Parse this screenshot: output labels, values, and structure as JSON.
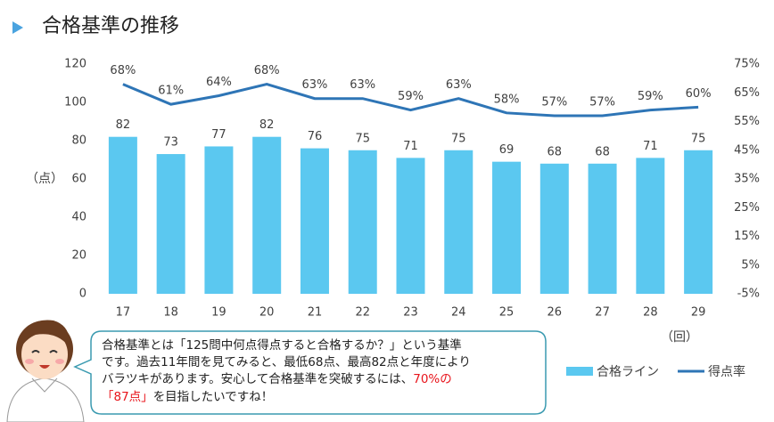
{
  "chart_data": {
    "type": "bar",
    "title": "合格基準の推移",
    "categories": [
      "17",
      "18",
      "19",
      "20",
      "21",
      "22",
      "23",
      "24",
      "25",
      "26",
      "27",
      "28",
      "29"
    ],
    "series": [
      {
        "name": "合格ライン",
        "type": "bar",
        "color": "#5bc8f0",
        "values": [
          82,
          73,
          77,
          82,
          76,
          75,
          71,
          75,
          69,
          68,
          68,
          71,
          75
        ]
      },
      {
        "name": "得点率",
        "type": "line",
        "axis": "y2",
        "color": "#2e75b6",
        "values": [
          68,
          61,
          64,
          68,
          63,
          63,
          59,
          63,
          58,
          57,
          57,
          59,
          60
        ],
        "value_labels": [
          "68%",
          "61%",
          "64%",
          "68%",
          "63%",
          "63%",
          "59%",
          "63%",
          "58%",
          "57%",
          "57%",
          "59%",
          "60%"
        ]
      }
    ],
    "ylim": [
      0,
      120
    ],
    "yticks": [
      0,
      20,
      40,
      60,
      80,
      100,
      120
    ],
    "y2lim": [
      -5,
      75
    ],
    "y2ticks": [
      {
        "value": -5,
        "label": "-5%"
      },
      {
        "value": 5,
        "label": "5%"
      },
      {
        "value": 15,
        "label": "15%"
      },
      {
        "value": 25,
        "label": "25%"
      },
      {
        "value": 35,
        "label": "35%"
      },
      {
        "value": 45,
        "label": "45%"
      },
      {
        "value": 55,
        "label": "55%"
      },
      {
        "value": 65,
        "label": "65%"
      },
      {
        "value": 75,
        "label": "75%"
      }
    ],
    "ylabel": "（点）",
    "xlabel": "（回）",
    "grid": false,
    "note": {
      "lines": [
        "合格基準とは「125問中何点得点すると合格するか？」という基準",
        "です。過去11年間を見てみると、最低68点、最高82点と年度により",
        "バラツキがあります。安心して合格基準を突破するには、"
      ],
      "highlight_1": "70%の",
      "highlight_2": "「87点」",
      "rest": "を目指したいですね！",
      "highlight_color": "#e8141b"
    }
  }
}
